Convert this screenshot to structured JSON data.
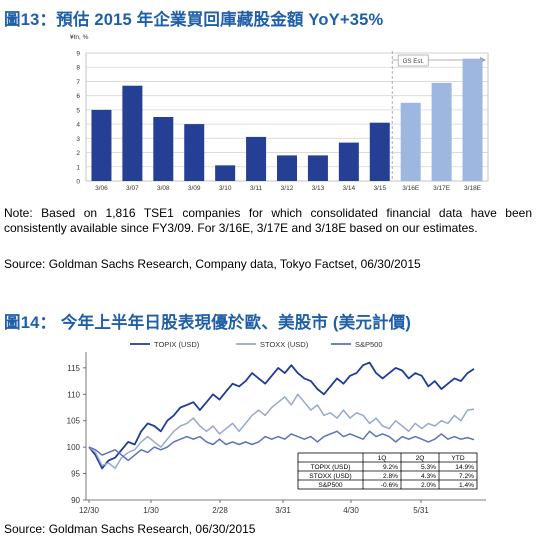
{
  "fig13": {
    "title": "圖13：預估 2015 年企業買回庫藏股金額 YoY+35%",
    "note": "Note: Based on 1,816 TSE1 companies for which consolidated financial data have been consistently available since FY3/09. For 3/16E, 3/17E and 3/18E based on our estimates.",
    "source": "Source: Goldman Sachs Research, Company data, Tokyo Factset, 06/30/2015"
  },
  "fig14": {
    "title": "圖14： 今年上半年日股表現優於歐、美股市 (美元計價)",
    "source": "Source: Goldman Sachs Research, 06/30/2015"
  },
  "chart_data": [
    {
      "type": "bar",
      "title": "",
      "ylabel": "¥tn, %",
      "xlabel": "",
      "ylim": [
        0,
        9
      ],
      "yticks": [
        "0",
        "1",
        "2",
        "3",
        "4",
        "5",
        "6",
        "7",
        "8",
        "9"
      ],
      "categories": [
        "3/06",
        "3/07",
        "3/08",
        "3/09",
        "3/10",
        "3/11",
        "3/12",
        "3/13",
        "3/14",
        "3/15",
        "3/16E",
        "3/17E",
        "3/18E"
      ],
      "values": [
        5.0,
        6.7,
        4.5,
        4.0,
        1.1,
        3.1,
        1.8,
        1.8,
        2.7,
        4.1,
        5.5,
        6.9,
        8.6
      ],
      "estimated_from_index": 10,
      "estimate_label": "GS Est.",
      "colors": {
        "actual": "#253f95",
        "estimate": "#9db7e0"
      },
      "grid": true
    },
    {
      "type": "line",
      "title": "",
      "xlabel": "",
      "ylabel": "",
      "ylim": [
        90,
        118
      ],
      "yticks": [
        "90",
        "95",
        "100",
        "105",
        "110",
        "115"
      ],
      "xticks": [
        "12/30",
        "1/30",
        "2/28",
        "3/31",
        "4/30",
        "5/31"
      ],
      "x_range": [
        "2014-12-30",
        "2015-06-30"
      ],
      "legend": {
        "position": "top"
      },
      "series": [
        {
          "name": "TOPIX (USD)",
          "color": "#1f3c96",
          "values": [
            100,
            98.5,
            96,
            97.5,
            98,
            99.5,
            101,
            100.5,
            103,
            104.5,
            104,
            103,
            105,
            106,
            107.5,
            108,
            108.5,
            107,
            108.5,
            110,
            109,
            110.5,
            112,
            111.5,
            112.5,
            114,
            113,
            112,
            113.5,
            115,
            114,
            115.5,
            114,
            113,
            112.5,
            111,
            110,
            111.5,
            113,
            112,
            113.5,
            114,
            115.5,
            116,
            114,
            113,
            114,
            115,
            114.5,
            113,
            114,
            113.5,
            111.5,
            112.5,
            111,
            112,
            113,
            112.5,
            114,
            114.8
          ]
        },
        {
          "name": "STOXX (USD)",
          "color": "#97a9cc",
          "values": [
            100,
            99,
            96.5,
            97,
            96,
            98,
            99,
            99.5,
            101,
            102,
            101,
            100,
            101.5,
            103,
            104,
            104.5,
            105.5,
            104,
            103,
            104,
            102.5,
            103.5,
            104.5,
            103,
            104.5,
            106,
            107,
            106,
            107.5,
            108.5,
            109.5,
            108,
            110,
            108.5,
            107,
            108,
            106,
            106.5,
            105.5,
            107,
            105.5,
            106.5,
            106,
            104.5,
            105.5,
            104,
            103.5,
            105,
            104,
            103,
            104.5,
            103.5,
            104.5,
            104,
            105,
            104.5,
            106,
            105,
            107,
            107.2
          ]
        },
        {
          "name": "S&P500",
          "color": "#5b73b6",
          "values": [
            100,
            99.5,
            98.5,
            99,
            99.5,
            98.5,
            97.5,
            98.5,
            99.5,
            99,
            100,
            99.5,
            100,
            101,
            101.5,
            102,
            101.5,
            102,
            101,
            100.5,
            101.5,
            100.5,
            101,
            100.5,
            101,
            100.5,
            101,
            102,
            101.5,
            102,
            101.5,
            102.5,
            102,
            101.5,
            102,
            101,
            102,
            102.5,
            103,
            102,
            102.5,
            102,
            101.5,
            103,
            102,
            102.5,
            102,
            101,
            102,
            101.5,
            102,
            101.5,
            101,
            101.5,
            102.5,
            101.5,
            102,
            101.5,
            101.8,
            101.4
          ]
        }
      ],
      "table": {
        "header": [
          "",
          "1Q",
          "2Q",
          "YTD"
        ],
        "rows": [
          [
            "TOPIX (USD)",
            "9.2%",
            "5.3%",
            "14.9%"
          ],
          [
            "STOXX (USD)",
            "2.8%",
            "4.3%",
            "7.2%"
          ],
          [
            "S&P500",
            "-0.6%",
            "2.0%",
            "1.4%"
          ]
        ]
      }
    }
  ]
}
